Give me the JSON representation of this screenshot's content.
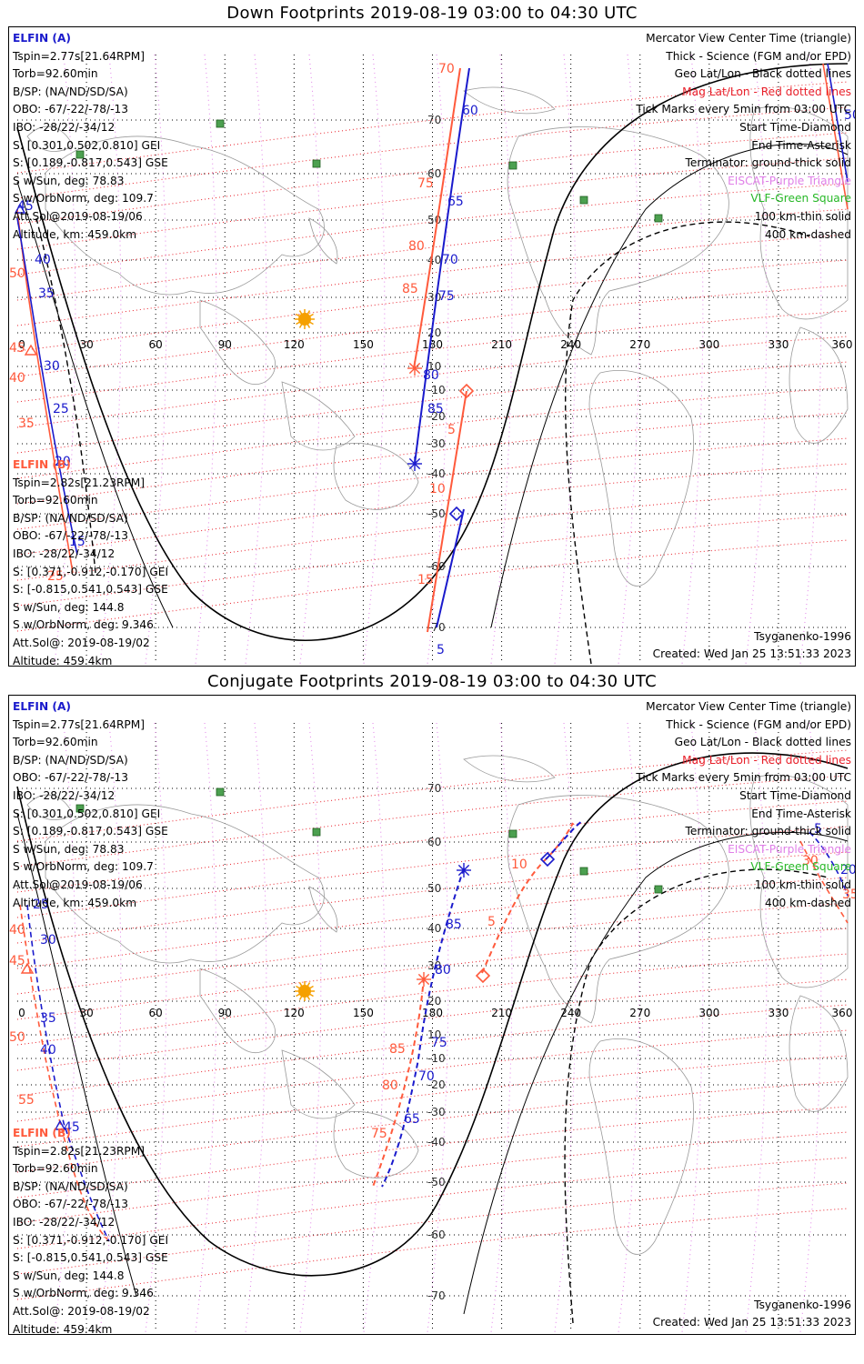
{
  "panels": [
    {
      "title": "Down Footprints 2019-08-19 03:00 to 04:30 UTC",
      "info_a": {
        "name": "ELFIN (A)",
        "lines": [
          "Tspin=2.77s[21.64RPM]",
          "Torb=92.60min",
          "B/SP: (NA/ND/SD/SA)",
          "OBO: -67/-22/-78/-13",
          "IBO: -28/22/-34/12",
          "S: [0.301,0.502,0.810] GEI",
          "S: [0.189,-0.817,0.543] GSE",
          "S w/Sun, deg: 78.83",
          "S w/OrbNorm, deg: 109.7",
          "Att.Sol@2019-08-19/06",
          "Altitude, km: 459.0km"
        ]
      },
      "info_b": {
        "name": "ELFIN (B)",
        "lines": [
          "Tspin=2.82s[21.23RPM]",
          "Torb=92.60min",
          "B/SP: (NA/ND/SD/SA)",
          "OBO: -67/-22/-78/-13",
          "IBO: -28/22/-34/12",
          "S: [0.371,-0.912,-0.170] GEI",
          "S: [-0.815,0.541,0.543] GSE",
          "S w/Sun, deg: 144.8",
          "S w/OrbNorm, deg: 9.346",
          "Att.Sol@: 2019-08-19/02",
          "Altitude: 459.4km"
        ]
      },
      "legend": [
        "Mercator View Center Time (triangle)",
        "Thick - Science (FGM and/or EPD)",
        "Geo Lat/Lon - Black dotted lines",
        "Mag Lat/Lon - Red dotted lines",
        "Tick Marks every 5min from 03:00 UTC",
        "Start Time-Diamond",
        "End Time-Asterisk",
        "Terminator: ground-thick solid",
        "EISCAT-Purple Triangle",
        "VLF-Green Square",
        "100 km-thin solid",
        "400 km-dashed"
      ],
      "model": "Tsyganenko-1996",
      "created": "Created: Wed Jan 25 13:51:33 2023"
    },
    {
      "title": "Conjugate Footprints 2019-08-19 03:00 to 04:30 UTC",
      "info_a": {
        "name": "ELFIN (A)",
        "lines": [
          "Tspin=2.77s[21.64RPM]",
          "Torb=92.60min",
          "B/SP: (NA/ND/SD/SA)",
          "OBO: -67/-22/-78/-13",
          "IBO: -28/22/-34/12",
          "S: [0.301,0.502,0.810] GEI",
          "S: [0.189,-0.817,0.543] GSE",
          "S w/Sun, deg: 78.83",
          "S w/OrbNorm, deg: 109.7",
          "Att.Sol@2019-08-19/06",
          "Altitude, km: 459.0km"
        ]
      },
      "info_b": {
        "name": "ELFIN (B)",
        "lines": [
          "Tspin=2.82s[21.23RPM]",
          "Torb=92.60min",
          "B/SP: (NA/ND/SD/SA)",
          "OBO: -67/-22/-78/-13",
          "IBO: -28/22/-34/12",
          "S: [0.371,-0.912,-0.170] GEI",
          "S: [-0.815,0.541,0.543] GSE",
          "S w/Sun, deg: 144.8",
          "S w/OrbNorm, deg: 9.346",
          "Att.Sol@: 2019-08-19/02",
          "Altitude: 459.4km"
        ]
      },
      "legend": [
        "Mercator View Center Time (triangle)",
        "Thick - Science (FGM and/or EPD)",
        "Geo Lat/Lon - Black dotted lines",
        "Mag Lat/Lon - Red dotted lines",
        "Tick Marks every 5min from 03:00 UTC",
        "Start Time-Diamond",
        "End Time-Asterisk",
        "Terminator: ground-thick solid",
        "EISCAT-Purple Triangle",
        "VLF-Green Square",
        "100 km-thin solid",
        "400 km-dashed"
      ],
      "model": "Tsyganenko-1996",
      "created": "Created: Wed Jan 25 13:51:33 2023"
    }
  ],
  "chart_data": [
    {
      "type": "map",
      "title": "Down Footprints 2019-08-19 03:00 to 04:30 UTC",
      "projection": "Mercator",
      "x_ticks": [
        0,
        30,
        60,
        90,
        120,
        150,
        180,
        210,
        240,
        270,
        300,
        330,
        360
      ],
      "lat_labels": [
        70,
        60,
        50,
        40,
        30,
        20,
        10,
        -10,
        -20,
        -30,
        -40,
        -50,
        -60,
        -70
      ],
      "xlim": [
        0,
        360
      ],
      "grid": true,
      "colors": {
        "elfin_a": "#1a1acc",
        "elfin_b": "#ff5a3c",
        "mag_grid": "#e8202a",
        "eiscat": "#e080e8",
        "vlf": "#28b828",
        "sun": "#f5a000"
      },
      "series": [
        {
          "name": "ELFIN (A)",
          "tick_labels": [
            "50",
            "60",
            "65",
            "70",
            "75",
            "80",
            "85",
            "5",
            "40",
            "35",
            "30",
            "25",
            "20",
            "15",
            "45"
          ]
        },
        {
          "name": "ELFIN (B)",
          "tick_labels": [
            "70",
            "75",
            "80",
            "85",
            "5",
            "10",
            "15",
            "50",
            "45",
            "40",
            "35",
            "25"
          ]
        }
      ]
    },
    {
      "type": "map",
      "title": "Conjugate Footprints 2019-08-19 03:00 to 04:30 UTC",
      "projection": "Mercator",
      "x_ticks": [
        0,
        30,
        60,
        90,
        120,
        150,
        180,
        210,
        240,
        270,
        300,
        330,
        360
      ],
      "lat_labels": [
        70,
        60,
        50,
        40,
        30,
        20,
        10,
        -10,
        -20,
        -30,
        -40,
        -50,
        -60,
        -70
      ],
      "xlim": [
        0,
        360
      ],
      "grid": true,
      "series": [
        {
          "name": "ELFIN (A)",
          "tick_labels": [
            "85",
            "80",
            "75",
            "70",
            "65",
            "25",
            "30",
            "35",
            "40",
            "45",
            "5",
            "20"
          ]
        },
        {
          "name": "ELFIN (B)",
          "tick_labels": [
            "10",
            "5",
            "85",
            "80",
            "75",
            "40",
            "45",
            "50",
            "55",
            "30",
            "35"
          ]
        }
      ]
    }
  ]
}
